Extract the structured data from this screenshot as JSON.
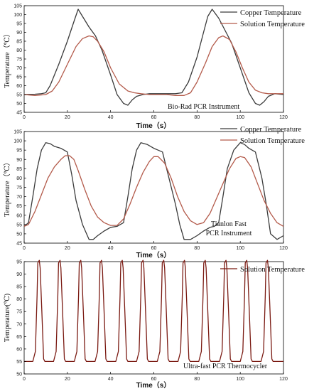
{
  "colors": {
    "copper": "#3b3b3b",
    "solution_top": "#b35a4a",
    "solution_bottom": "#7a1a12",
    "axis": "#000000"
  },
  "chart_data": [
    {
      "type": "line",
      "xlabel": "Time（s）",
      "ylabel": "Temperature（℃）",
      "xlim": [
        0,
        120
      ],
      "ylim": [
        45,
        105
      ],
      "xticks": [
        0,
        20,
        40,
        60,
        80,
        100,
        120
      ],
      "yticks": [
        45,
        50,
        55,
        60,
        65,
        70,
        75,
        80,
        85,
        90,
        95,
        100,
        105
      ],
      "annotations": [
        "Bio-Rad PCR Instrument"
      ],
      "legend": "top-right",
      "series": [
        {
          "name": "Copper Temperature",
          "color_key": "copper",
          "x": [
            0,
            5,
            8,
            10,
            12,
            16,
            20,
            23,
            25,
            27,
            30,
            33,
            36,
            40,
            43,
            46,
            48,
            50,
            52,
            55,
            58,
            62,
            66,
            70,
            73,
            76,
            80,
            83,
            85,
            87,
            90,
            93,
            96,
            100,
            104,
            107,
            109,
            111,
            113,
            116,
            120
          ],
          "y": [
            55,
            55.2,
            55.5,
            56,
            60,
            72,
            85,
            96,
            103,
            99,
            93,
            88,
            80,
            66,
            55,
            50,
            49,
            52,
            54,
            55,
            55.5,
            55.5,
            55.5,
            55.5,
            56,
            62,
            76,
            90,
            99,
            103,
            98,
            91,
            84,
            70,
            56,
            50,
            49,
            51,
            54,
            55.5,
            55
          ]
        },
        {
          "name": "Solution Temperature",
          "color_key": "solution_top",
          "x": [
            0,
            5,
            10,
            13,
            16,
            20,
            24,
            27,
            30,
            32,
            34,
            37,
            40,
            44,
            48,
            51,
            54,
            58,
            62,
            66,
            70,
            74,
            77,
            80,
            84,
            87,
            90,
            92,
            95,
            98,
            101,
            104,
            107,
            110,
            113,
            116,
            120
          ],
          "y": [
            55,
            54.5,
            55,
            57,
            62,
            72,
            82,
            86.5,
            88,
            87.5,
            85,
            79,
            70,
            61,
            57,
            56,
            55.5,
            55,
            55,
            55,
            54.5,
            54.5,
            56,
            62,
            73,
            82,
            87,
            88,
            86,
            79,
            70,
            62,
            57.5,
            56,
            55.5,
            55.5,
            55.5
          ]
        }
      ]
    },
    {
      "type": "line",
      "xlabel": "Time（s）",
      "ylabel": "Temperature（℃）",
      "xlim": [
        0,
        120
      ],
      "ylim": [
        45,
        105
      ],
      "xticks": [
        0,
        20,
        40,
        60,
        80,
        100,
        120
      ],
      "yticks": [
        45,
        50,
        55,
        60,
        65,
        70,
        75,
        80,
        85,
        90,
        95,
        100,
        105
      ],
      "annotations": [
        "Tianlon Fast",
        "PCR Instrument"
      ],
      "legend": "top-right",
      "series": [
        {
          "name": "Copper Temperature",
          "color_key": "copper",
          "x": [
            0,
            2,
            4,
            6,
            8,
            10,
            12,
            14,
            17,
            20,
            22,
            24,
            27,
            30,
            32,
            34,
            37,
            40,
            43,
            46,
            48,
            50,
            52,
            54,
            57,
            60,
            62,
            64,
            67,
            70,
            72,
            74,
            77,
            80,
            83,
            86,
            88,
            90,
            92,
            94,
            97,
            100,
            102,
            104,
            107,
            110,
            112,
            114,
            117,
            120
          ],
          "y": [
            54,
            56,
            70,
            85,
            95,
            99,
            98.5,
            97,
            96,
            94,
            82,
            68,
            55,
            47,
            47,
            49,
            51.5,
            53.5,
            54,
            56,
            70,
            85,
            95,
            99,
            98,
            96,
            95,
            94,
            80,
            66,
            55,
            47,
            47,
            49,
            51.5,
            53.5,
            54,
            56,
            70,
            85,
            95,
            99,
            98,
            96,
            94,
            80,
            66,
            50,
            47,
            49
          ]
        },
        {
          "name": "Solution Temperature",
          "color_key": "solution_top",
          "x": [
            0,
            2,
            5,
            8,
            11,
            14,
            17,
            19,
            21,
            23,
            25,
            28,
            31,
            34,
            37,
            40,
            43,
            46,
            49,
            52,
            55,
            58,
            60,
            62,
            65,
            68,
            71,
            74,
            77,
            80,
            83,
            86,
            89,
            92,
            95,
            98,
            100,
            102,
            105,
            108,
            111,
            114,
            117,
            120
          ],
          "y": [
            54,
            55,
            62,
            71,
            80,
            86,
            90,
            92,
            92,
            90,
            84,
            74,
            65,
            59,
            56,
            54.5,
            54.5,
            58,
            66,
            75,
            83,
            89,
            91.5,
            91.5,
            88,
            80,
            70,
            62,
            57,
            55,
            56,
            61,
            69,
            77,
            85,
            90.5,
            91.5,
            91,
            86,
            77,
            68,
            61,
            56,
            54
          ]
        }
      ]
    },
    {
      "type": "line",
      "xlabel": "Time（s）",
      "ylabel": "Temperature(℃)",
      "xlim": [
        0,
        120
      ],
      "ylim": [
        50,
        95
      ],
      "xticks": [
        0,
        20,
        40,
        60,
        80,
        100,
        120
      ],
      "yticks": [
        50,
        55,
        60,
        65,
        70,
        75,
        80,
        85,
        90,
        95
      ],
      "annotations": [
        "Ultra-fast PCR Thermocycler"
      ],
      "legend": "top-right",
      "periodic": {
        "first_peak": 6.6,
        "period": 9.6,
        "count": 12,
        "low": 55,
        "high": 95.5,
        "rise": 1.4,
        "hold": 0.8,
        "fall": 1.6
      },
      "series": [
        {
          "name": "Solution Temperature",
          "color_key": "solution_bottom"
        }
      ]
    }
  ]
}
